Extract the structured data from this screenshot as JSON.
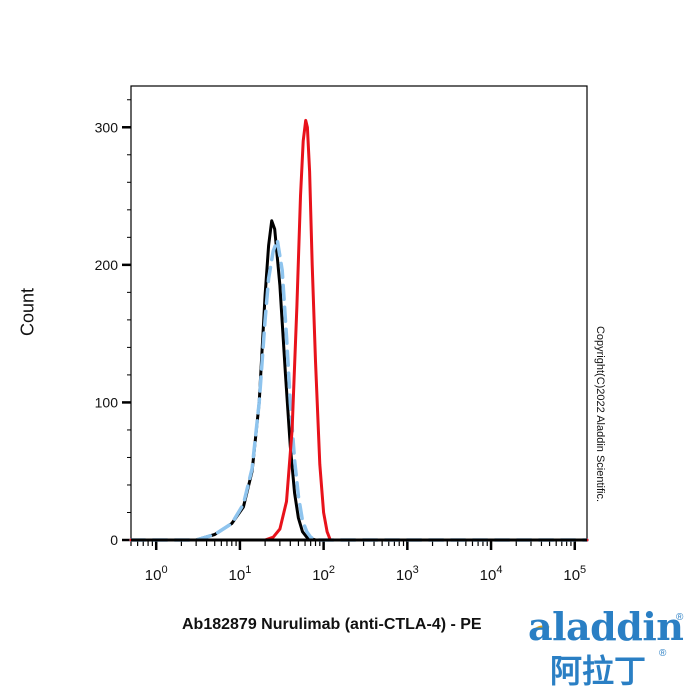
{
  "chart_data": {
    "type": "line",
    "xlabel": "Ab182879 Nurulimab (anti-CTLA-4) - PE",
    "ylabel": "Count",
    "x_scale": "log",
    "xlim": [
      0.5,
      140000
    ],
    "ylim": [
      0,
      330
    ],
    "x_ticks": [
      {
        "value": 1,
        "base": "10",
        "exp": "0"
      },
      {
        "value": 10,
        "base": "10",
        "exp": "1"
      },
      {
        "value": 100,
        "base": "10",
        "exp": "2"
      },
      {
        "value": 1000,
        "base": "10",
        "exp": "3"
      },
      {
        "value": 10000,
        "base": "10",
        "exp": "4"
      },
      {
        "value": 100000,
        "base": "10",
        "exp": "5"
      }
    ],
    "y_ticks": [
      {
        "value": 0,
        "label": "0"
      },
      {
        "value": 100,
        "label": "100"
      },
      {
        "value": 200,
        "label": "200"
      },
      {
        "value": 300,
        "label": "300"
      }
    ],
    "grid": false,
    "legend": "none",
    "series": [
      {
        "color": "#000000",
        "style": "solid",
        "x": [
          0.5,
          3,
          5,
          8,
          11,
          14,
          17,
          20,
          22,
          24,
          26,
          30,
          35,
          40,
          45,
          50,
          56,
          63,
          70,
          80,
          90,
          140000
        ],
        "y": [
          0,
          0,
          4,
          12,
          24,
          50,
          100,
          178,
          214,
          232,
          226,
          185,
          120,
          68,
          34,
          16,
          6,
          2,
          1,
          0,
          0,
          0
        ]
      },
      {
        "color": "#8ec4ee",
        "style": "dashed",
        "x": [
          0.5,
          3,
          5,
          8,
          11,
          14,
          17,
          20,
          22,
          25,
          28,
          32,
          36,
          40,
          45,
          50,
          56,
          63,
          70,
          80,
          100,
          140000
        ],
        "y": [
          0,
          0,
          4,
          12,
          26,
          52,
          100,
          160,
          190,
          210,
          218,
          196,
          148,
          100,
          58,
          32,
          14,
          6,
          2,
          0,
          0,
          0
        ]
      },
      {
        "color": "#e8121b",
        "style": "solid",
        "x": [
          0.5,
          20,
          25,
          30,
          36,
          42,
          48,
          53,
          57,
          61,
          64,
          68,
          73,
          80,
          90,
          100,
          110,
          120,
          140000
        ],
        "y": [
          0,
          0,
          2,
          8,
          28,
          80,
          170,
          250,
          290,
          305,
          300,
          268,
          200,
          130,
          55,
          20,
          6,
          0,
          0
        ]
      }
    ]
  },
  "copyright": "Copyright(C)2022 Aladdin Scientific.",
  "logo": {
    "text": "aladdin",
    "chinese": "阿拉丁",
    "reg_mark": "®"
  }
}
